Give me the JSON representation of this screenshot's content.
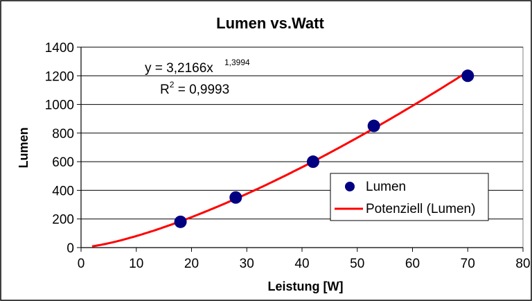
{
  "chart_data": {
    "type": "scatter",
    "title": "Lumen vs.Watt",
    "xlabel": "Leistung [W]",
    "ylabel": "Lumen",
    "xlim": [
      0,
      80
    ],
    "ylim": [
      0,
      1400
    ],
    "x_ticks": [
      "0",
      "10",
      "20",
      "30",
      "40",
      "50",
      "60",
      "70",
      "80"
    ],
    "y_ticks": [
      "0",
      "200",
      "400",
      "600",
      "800",
      "1000",
      "1200",
      "1400"
    ],
    "grid": "horizontal",
    "series": [
      {
        "name": "Lumen",
        "kind": "scatter",
        "color": "#000080",
        "x": [
          18,
          28,
          42,
          53,
          70
        ],
        "y": [
          180,
          350,
          600,
          850,
          1200
        ]
      },
      {
        "name": "Potenziell (Lumen)",
        "kind": "trendline",
        "color": "#ff0000",
        "model": "power",
        "coefficient": 3.2166,
        "exponent": 1.3994,
        "x_range": [
          2,
          70
        ]
      }
    ],
    "annotation": {
      "equation": "y = 3,2166x",
      "equation_exponent": "1,3994",
      "r2_prefix": "R",
      "r2_sup": "2",
      "r2_value": " = 0,9993"
    },
    "legend": {
      "placement": "right",
      "entries": [
        "Lumen",
        "Potenziell (Lumen)"
      ]
    }
  }
}
